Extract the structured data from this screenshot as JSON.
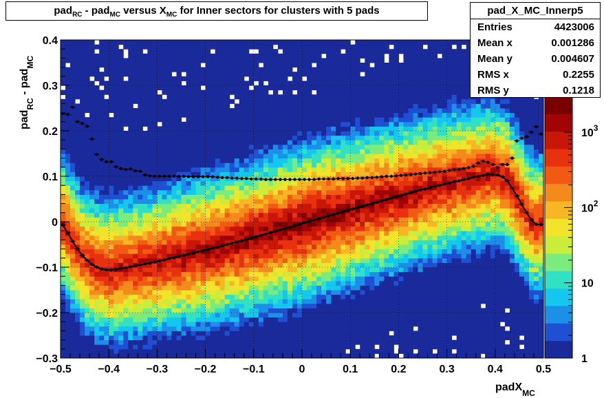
{
  "title": {
    "parts": [
      {
        "text": "pad",
        "sub": "RC"
      },
      {
        "text": " - pad",
        "sub": "MC"
      },
      {
        "text": " versus X",
        "sub": "MC"
      },
      {
        "text": " for Inner sectors for clusters with 5 pads",
        "sub": ""
      }
    ]
  },
  "stats": {
    "name": "pad_X_MC_Innerp5",
    "rows": [
      {
        "label": "Entries",
        "value": "4423006"
      },
      {
        "label": "Mean x",
        "value": "0.001286"
      },
      {
        "label": "Mean y",
        "value": "0.004607"
      },
      {
        "label": "RMS x",
        "value": "0.2255"
      },
      {
        "label": "RMS y",
        "value": "0.1218"
      }
    ]
  },
  "axes": {
    "xlabel_main": "padX",
    "xlabel_sub": "MC",
    "ylabel_parts": [
      {
        "text": "pad",
        "sub": "RC"
      },
      {
        "text": " - pad",
        "sub": "MC"
      }
    ]
  },
  "colors": {
    "palette": [
      "#1a2a9a",
      "#1f4fd2",
      "#1c8fe8",
      "#13c7ee",
      "#32e0c4",
      "#7ceb7e",
      "#c9ed3a",
      "#f2e42a",
      "#f7b623",
      "#f58a1c",
      "#f25a14",
      "#e8320f",
      "#c81608",
      "#a00404",
      "#7a0000"
    ],
    "marker": "#000000"
  },
  "chart_data": {
    "type": "heatmap",
    "xlim": [
      -0.5,
      0.5
    ],
    "ylim": [
      -0.3,
      0.4
    ],
    "x_ticks": [
      "−0.5",
      "−0.4",
      "−0.3",
      "−0.2",
      "−0.1",
      "0",
      "0.1",
      "0.2",
      "0.3",
      "0.4",
      "0.5"
    ],
    "y_ticks": [
      "−0.3",
      "−0.2",
      "−0.1",
      "0",
      "0.1",
      "0.2",
      "0.3",
      "0.4"
    ],
    "z_scale": "log",
    "z_range": [
      1,
      3000
    ],
    "z_ticks": [
      {
        "label": "1",
        "value": 1
      },
      {
        "label": "10",
        "value": 10
      },
      {
        "label": "10",
        "sup": "2",
        "value": 100
      },
      {
        "label": "10",
        "sup": "3",
        "value": 1000
      }
    ],
    "grid": true,
    "profile_mean": {
      "x": [
        -0.495,
        -0.485,
        -0.475,
        -0.465,
        -0.455,
        -0.445,
        -0.435,
        -0.425,
        -0.415,
        -0.405,
        -0.395,
        -0.385,
        -0.375,
        -0.365,
        -0.355,
        -0.345,
        -0.335,
        -0.325,
        -0.315,
        -0.305,
        -0.295,
        -0.285,
        -0.275,
        -0.265,
        -0.255,
        -0.245,
        -0.235,
        -0.225,
        -0.215,
        -0.205,
        -0.195,
        -0.185,
        -0.175,
        -0.165,
        -0.155,
        -0.145,
        -0.135,
        -0.125,
        -0.115,
        -0.105,
        -0.095,
        -0.085,
        -0.075,
        -0.065,
        -0.055,
        -0.045,
        -0.035,
        -0.025,
        -0.015,
        -0.005,
        0.005,
        0.015,
        0.025,
        0.035,
        0.045,
        0.055,
        0.065,
        0.075,
        0.085,
        0.095,
        0.105,
        0.115,
        0.125,
        0.135,
        0.145,
        0.155,
        0.165,
        0.175,
        0.185,
        0.195,
        0.205,
        0.215,
        0.225,
        0.235,
        0.245,
        0.255,
        0.265,
        0.275,
        0.285,
        0.295,
        0.305,
        0.315,
        0.325,
        0.335,
        0.345,
        0.355,
        0.365,
        0.375,
        0.385,
        0.395,
        0.405,
        0.415,
        0.425,
        0.435,
        0.445,
        0.455,
        0.465,
        0.475,
        0.485,
        0.495
      ],
      "y": [
        -0.007,
        -0.025,
        -0.043,
        -0.06,
        -0.074,
        -0.085,
        -0.094,
        -0.1,
        -0.104,
        -0.106,
        -0.106,
        -0.105,
        -0.103,
        -0.101,
        -0.099,
        -0.097,
        -0.095,
        -0.093,
        -0.091,
        -0.089,
        -0.086,
        -0.084,
        -0.081,
        -0.079,
        -0.076,
        -0.074,
        -0.071,
        -0.069,
        -0.066,
        -0.064,
        -0.061,
        -0.058,
        -0.056,
        -0.053,
        -0.05,
        -0.047,
        -0.045,
        -0.042,
        -0.039,
        -0.036,
        -0.033,
        -0.03,
        -0.027,
        -0.024,
        -0.021,
        -0.018,
        -0.015,
        -0.012,
        -0.009,
        -0.006,
        -0.002,
        0.001,
        0.004,
        0.007,
        0.01,
        0.013,
        0.016,
        0.019,
        0.022,
        0.025,
        0.028,
        0.031,
        0.034,
        0.037,
        0.04,
        0.043,
        0.046,
        0.049,
        0.052,
        0.055,
        0.058,
        0.061,
        0.064,
        0.067,
        0.07,
        0.072,
        0.075,
        0.078,
        0.08,
        0.083,
        0.085,
        0.088,
        0.09,
        0.093,
        0.095,
        0.098,
        0.1,
        0.102,
        0.104,
        0.104,
        0.103,
        0.099,
        0.09,
        0.074,
        0.057,
        0.038,
        0.02,
        0.004,
        -0.006,
        -0.006
      ]
    },
    "profile_rms": {
      "x": [
        -0.495,
        -0.485,
        -0.475,
        -0.465,
        -0.455,
        -0.445,
        -0.435,
        -0.425,
        -0.415,
        -0.405,
        -0.395,
        -0.385,
        -0.375,
        -0.365,
        -0.355,
        -0.345,
        -0.335,
        -0.325,
        -0.315,
        -0.305,
        -0.295,
        -0.285,
        -0.275,
        -0.265,
        -0.255,
        -0.245,
        -0.235,
        -0.225,
        -0.215,
        -0.205,
        -0.195,
        -0.185,
        -0.175,
        -0.165,
        -0.155,
        -0.145,
        -0.135,
        -0.125,
        -0.115,
        -0.105,
        -0.095,
        -0.085,
        -0.075,
        -0.065,
        -0.055,
        -0.045,
        -0.035,
        -0.025,
        -0.015,
        -0.005,
        0.005,
        0.015,
        0.025,
        0.035,
        0.045,
        0.055,
        0.065,
        0.075,
        0.085,
        0.095,
        0.105,
        0.115,
        0.125,
        0.135,
        0.145,
        0.155,
        0.165,
        0.175,
        0.185,
        0.195,
        0.205,
        0.215,
        0.225,
        0.235,
        0.245,
        0.255,
        0.265,
        0.275,
        0.285,
        0.295,
        0.305,
        0.315,
        0.325,
        0.335,
        0.345,
        0.355,
        0.365,
        0.375,
        0.385,
        0.395,
        0.405,
        0.415,
        0.425,
        0.435,
        0.445,
        0.455,
        0.465,
        0.475,
        0.485,
        0.495
      ],
      "y": [
        0.238,
        0.236,
        0.252,
        0.22,
        0.216,
        0.21,
        0.182,
        0.148,
        0.137,
        0.132,
        0.132,
        0.121,
        0.117,
        0.115,
        0.116,
        0.112,
        0.111,
        0.103,
        0.101,
        0.1,
        0.1,
        0.1,
        0.1,
        0.1,
        0.1,
        0.1,
        0.099,
        0.099,
        0.099,
        0.099,
        0.099,
        0.099,
        0.098,
        0.097,
        0.097,
        0.096,
        0.096,
        0.095,
        0.095,
        0.094,
        0.094,
        0.094,
        0.093,
        0.093,
        0.093,
        0.093,
        0.093,
        0.093,
        0.093,
        0.093,
        0.093,
        0.093,
        0.093,
        0.094,
        0.094,
        0.094,
        0.094,
        0.095,
        0.095,
        0.095,
        0.095,
        0.096,
        0.096,
        0.097,
        0.097,
        0.098,
        0.099,
        0.1,
        0.1,
        0.101,
        0.102,
        0.103,
        0.104,
        0.105,
        0.106,
        0.107,
        0.108,
        0.109,
        0.11,
        0.111,
        0.113,
        0.115,
        0.115,
        0.117,
        0.119,
        0.122,
        0.129,
        0.133,
        0.131,
        0.126,
        0.119,
        0.126,
        0.126,
        0.14,
        0.178,
        0.184,
        0.187,
        0.197,
        0.209,
        0.193
      ]
    }
  }
}
